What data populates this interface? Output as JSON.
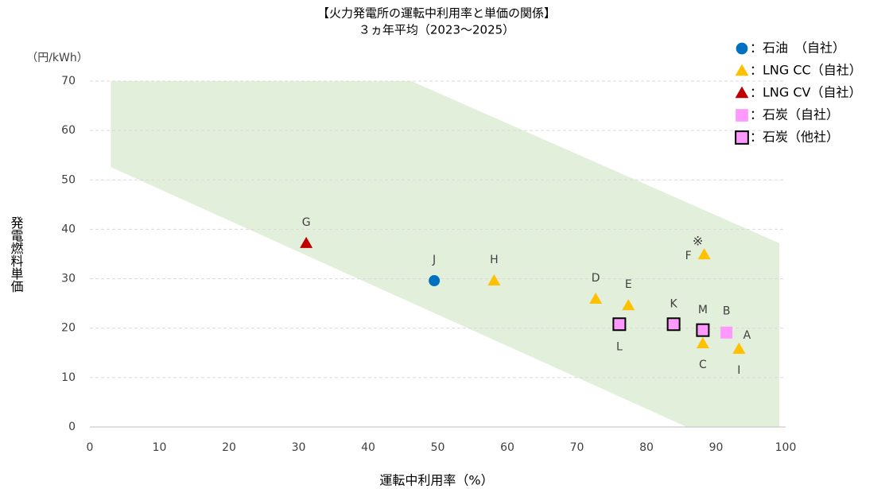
{
  "chart_data": {
    "type": "scatter",
    "title": [
      "【火力発電所の運転中利用率と単価の関係】",
      "３ヵ年平均（2023～2025）"
    ],
    "y_unit": "（円/kWh）",
    "ylabel": "発電燃料単価",
    "xlabel": "運転中利用率（%）",
    "note": "※",
    "xlim": [
      0,
      100
    ],
    "ylim": [
      0,
      70
    ],
    "xticks": [
      0,
      10,
      20,
      30,
      40,
      50,
      60,
      70,
      80,
      90,
      100
    ],
    "yticks": [
      0,
      10,
      20,
      30,
      40,
      50,
      60,
      70
    ],
    "grid": true,
    "band": {
      "color": "#e2efda",
      "x": [
        3,
        3,
        46.2,
        99.1,
        99.1,
        85.8
      ],
      "y": [
        52.6,
        70,
        70,
        37.2,
        0,
        0
      ]
    },
    "series": [
      {
        "name": "：石油　（自社）",
        "color": "#0070c0",
        "marker": "circle",
        "x": [
          49.5
        ],
        "values": [
          29.6
        ],
        "labels": [
          "J"
        ]
      },
      {
        "name": "：LNG CC（自社）",
        "color": "#ffc000",
        "marker": "triangle",
        "x": [
          58.1,
          72.7,
          77.4,
          88.3,
          88.1,
          93.3,
          93.3
        ],
        "values": [
          29.6,
          25.9,
          24.6,
          34.9,
          16.9,
          15.8,
          15.8
        ],
        "labels": [
          "H",
          "D",
          "E",
          "F",
          "C",
          "A",
          "I"
        ]
      },
      {
        "name": "：LNG CV（自社）",
        "color": "#c00000",
        "marker": "triangle",
        "x": [
          31.1
        ],
        "values": [
          37.2
        ],
        "labels": [
          "G"
        ]
      },
      {
        "name": "：石炭（自社）",
        "color": "#ff99ff",
        "marker": "square",
        "x": [
          91.5
        ],
        "values": [
          19.1
        ],
        "labels": [
          "B"
        ]
      },
      {
        "name": "：石炭（他社）",
        "color": "#ff99ff",
        "marker": "square-outline",
        "x": [
          76.1,
          83.9,
          88.1
        ],
        "values": [
          20.8,
          20.8,
          19.6
        ],
        "labels": [
          "L",
          "K",
          "M"
        ]
      }
    ]
  }
}
